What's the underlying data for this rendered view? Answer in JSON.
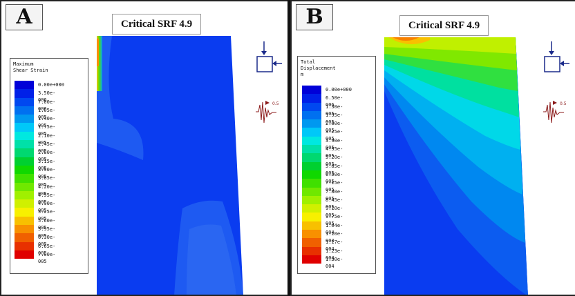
{
  "panels": [
    {
      "letter": "A",
      "title": "Critical SRF 4.9",
      "legend_title_lines": [
        "Maximum",
        "Shear Strain"
      ],
      "legend_values": [
        "0.00e+000",
        "3.50e-006",
        "7.00e-006",
        "1.05e-005",
        "1.40e-005",
        "1.75e-005",
        "2.10e-005",
        "2.45e-005",
        "2.80e-005",
        "3.15e-005",
        "3.50e-005",
        "3.85e-005",
        "4.20e-005",
        "4.55e-005",
        "4.90e-005",
        "5.25e-005",
        "5.60e-005",
        "5.95e-005",
        "6.30e-005",
        "6.65e-005",
        "7.00e-005"
      ],
      "load_label": "0.5"
    },
    {
      "letter": "B",
      "title": "Critical SRF 4.9",
      "legend_title_lines": [
        "Total",
        "Displacement",
        "m"
      ],
      "legend_values": [
        "0.00e+000",
        "6.50e-006",
        "1.30e-005",
        "1.95e-005",
        "2.60e-005",
        "3.25e-005",
        "3.90e-005",
        "4.55e-005",
        "5.20e-005",
        "5.85e-005",
        "6.50e-005",
        "7.15e-005",
        "7.80e-005",
        "8.45e-005",
        "9.10e-005",
        "9.75e-005",
        "1.04e-004",
        "1.10e-004",
        "1.17e-004",
        "1.23e-004",
        "1.30e-004"
      ],
      "load_label": "0.5"
    }
  ],
  "colors": {
    "scale": [
      "#0000d8",
      "#0020e8",
      "#0048f0",
      "#0070f0",
      "#0098f0",
      "#00c8f8",
      "#00e8e0",
      "#00e0a8",
      "#00d870",
      "#00d030",
      "#10d800",
      "#40e000",
      "#70e800",
      "#a0f000",
      "#d0f000",
      "#f8f000",
      "#f8c000",
      "#f89000",
      "#f06000",
      "#e83000",
      "#e00000"
    ],
    "field_base": "#0a3cf0"
  }
}
